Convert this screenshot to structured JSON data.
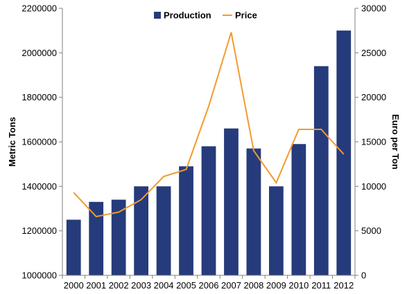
{
  "chart_data": {
    "type": "bar",
    "categories": [
      "2000",
      "2001",
      "2002",
      "2003",
      "2004",
      "2005",
      "2006",
      "2007",
      "2008",
      "2009",
      "2010",
      "2011",
      "2012"
    ],
    "series": [
      {
        "name": "Production",
        "type": "bar",
        "axis": "left",
        "color": "#263b7b",
        "values": [
          1250000,
          1330000,
          1340000,
          1400000,
          1400000,
          1490000,
          1580000,
          1660000,
          1570000,
          1400000,
          1590000,
          1940000,
          2100000
        ]
      },
      {
        "name": "Price",
        "type": "line",
        "axis": "right",
        "color": "#f39a2d",
        "values": [
          9300,
          6600,
          7100,
          8500,
          11100,
          11900,
          19000,
          27300,
          14000,
          10400,
          16400,
          16400,
          13600
        ]
      }
    ],
    "y_left": {
      "label": "Metric Tons",
      "ylim": [
        1000000,
        2200000
      ],
      "ticks": [
        "1000000",
        "1200000",
        "1400000",
        "1600000",
        "1800000",
        "2000000",
        "2200000"
      ]
    },
    "y_right": {
      "label": "Euro per Ton",
      "ylim": [
        0,
        30000
      ],
      "ticks": [
        "0",
        "5000",
        "10000",
        "15000",
        "20000",
        "25000",
        "30000"
      ]
    },
    "grid": false,
    "legend_position": "top-center"
  }
}
